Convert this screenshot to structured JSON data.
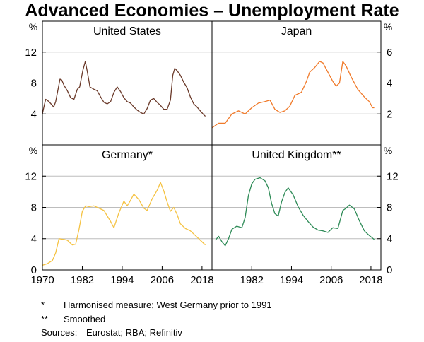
{
  "chart_data": {
    "type": "line",
    "title": "Advanced Economies – Unemployment Rate",
    "unit": "%",
    "x_ticks": [
      "1970",
      "1982",
      "1994",
      "2006",
      "2018"
    ],
    "xlim": [
      1970,
      2021
    ],
    "panels": [
      {
        "name": "United States",
        "color": "#6b3a2a",
        "axis": "left",
        "ylim": [
          0,
          16
        ],
        "yticks": [
          "4",
          "8",
          "12"
        ],
        "x": [
          1970,
          1970.6,
          1971,
          1972,
          1973.4,
          1974,
          1975.3,
          1975.8,
          1976.5,
          1977.5,
          1978.5,
          1979.5,
          1980.5,
          1981.2,
          1982.2,
          1982.9,
          1983.5,
          1984.3,
          1985.5,
          1986.5,
          1987.5,
          1988.5,
          1989.5,
          1990.5,
          1991.5,
          1992.5,
          1993.5,
          1994.5,
          1995.5,
          1996.5,
          1997.5,
          1998.5,
          1999.5,
          2000.5,
          2001.5,
          2002.5,
          2003.5,
          2004.5,
          2005.5,
          2006.5,
          2007.5,
          2008.5,
          2009.2,
          2009.8,
          2010.5,
          2011.5,
          2012.5,
          2013.5,
          2014.5,
          2015.5,
          2016.5,
          2017.5,
          2018.5,
          2019
        ],
        "values": [
          4.0,
          5.2,
          5.9,
          5.6,
          4.9,
          5.6,
          8.5,
          8.4,
          7.7,
          7.0,
          6.1,
          5.9,
          7.2,
          7.5,
          9.7,
          10.8,
          9.5,
          7.5,
          7.2,
          7.0,
          6.2,
          5.5,
          5.3,
          5.6,
          6.8,
          7.5,
          6.9,
          6.1,
          5.6,
          5.4,
          4.9,
          4.5,
          4.2,
          4.0,
          4.7,
          5.8,
          6.0,
          5.5,
          5.1,
          4.6,
          4.6,
          5.8,
          9.0,
          9.9,
          9.6,
          9.0,
          8.1,
          7.4,
          6.2,
          5.3,
          4.9,
          4.4,
          3.9,
          3.7
        ]
      },
      {
        "name": "Japan",
        "color": "#f07a2a",
        "axis": "right",
        "ylim": [
          0,
          8
        ],
        "yticks": [
          "2",
          "4",
          "6"
        ],
        "x": [
          1970,
          1972,
          1974,
          1976,
          1978,
          1980,
          1982,
          1984,
          1986,
          1987.5,
          1989,
          1990.5,
          1992,
          1993.5,
          1995,
          1997,
          1998.5,
          1999.5,
          2001,
          2002.5,
          2003.5,
          2005,
          2006.5,
          2007.5,
          2008.5,
          2009.5,
          2010.5,
          2012,
          2014,
          2016,
          2017.5,
          2018.5,
          2019
        ],
        "values": [
          1.1,
          1.4,
          1.4,
          2.0,
          2.2,
          2.0,
          2.4,
          2.7,
          2.8,
          2.9,
          2.3,
          2.1,
          2.2,
          2.5,
          3.2,
          3.4,
          4.1,
          4.7,
          5.0,
          5.4,
          5.3,
          4.7,
          4.1,
          3.8,
          4.0,
          5.4,
          5.1,
          4.4,
          3.6,
          3.1,
          2.8,
          2.4,
          2.4
        ]
      },
      {
        "name": "Germany*",
        "color": "#f5c242",
        "axis": "left",
        "ylim": [
          0,
          16
        ],
        "yticks": [
          "0",
          "4",
          "8",
          "12"
        ],
        "x": [
          1970,
          1971.5,
          1973,
          1974,
          1975,
          1976.5,
          1977.5,
          1979,
          1980,
          1981,
          1982,
          1983,
          1984,
          1985.5,
          1987,
          1988.5,
          1989.5,
          1990.5,
          1991.5,
          1993,
          1994.5,
          1995.5,
          1996.5,
          1997.5,
          1999,
          2000.5,
          2001.5,
          2003,
          2004.5,
          2005.5,
          2006.5,
          2007.5,
          2008.5,
          2009.5,
          2010.5,
          2011.5,
          2013,
          2014.5,
          2016,
          2017.5,
          2019
        ],
        "values": [
          0.6,
          0.8,
          1.2,
          2.2,
          4.0,
          3.9,
          3.8,
          3.2,
          3.3,
          5.2,
          7.5,
          8.2,
          8.1,
          8.2,
          7.9,
          7.6,
          6.9,
          6.2,
          5.4,
          7.3,
          8.8,
          8.2,
          8.9,
          9.7,
          9.0,
          7.9,
          7.6,
          9.1,
          10.2,
          11.2,
          10.1,
          8.7,
          7.5,
          8.0,
          7.1,
          5.9,
          5.3,
          5.0,
          4.4,
          3.8,
          3.2
        ]
      },
      {
        "name": "United Kingdom**",
        "color": "#2e8b57",
        "axis": "right",
        "ylim": [
          0,
          16
        ],
        "yticks": [
          "0",
          "4",
          "8",
          "12"
        ],
        "x": [
          1971,
          1972,
          1973,
          1974,
          1975,
          1976,
          1977.5,
          1979,
          1980,
          1981,
          1982,
          1983,
          1984.5,
          1986,
          1987,
          1988,
          1989,
          1990,
          1991,
          1992,
          1993,
          1994.5,
          1996,
          1997.5,
          1999,
          2000.5,
          2002,
          2003.5,
          2005,
          2006.5,
          2008,
          2009.5,
          2010.5,
          2011.5,
          2013,
          2014.5,
          2016,
          2017.5,
          2019
        ],
        "values": [
          3.8,
          4.3,
          3.6,
          3.1,
          4.0,
          5.2,
          5.6,
          5.4,
          6.7,
          9.5,
          11.0,
          11.6,
          11.8,
          11.4,
          10.5,
          8.5,
          7.2,
          6.9,
          8.7,
          9.9,
          10.5,
          9.6,
          8.1,
          7.0,
          6.2,
          5.5,
          5.1,
          5.0,
          4.8,
          5.4,
          5.3,
          7.6,
          7.9,
          8.3,
          7.8,
          6.3,
          5.0,
          4.4,
          3.9
        ]
      }
    ]
  },
  "footnotes": [
    {
      "mark": "*",
      "text": "Harmonised measure; West Germany prior to 1991"
    },
    {
      "mark": "**",
      "text": "Smoothed"
    }
  ],
  "sources": {
    "label": "Sources:",
    "text": "Eurostat; RBA; Refinitiv"
  }
}
